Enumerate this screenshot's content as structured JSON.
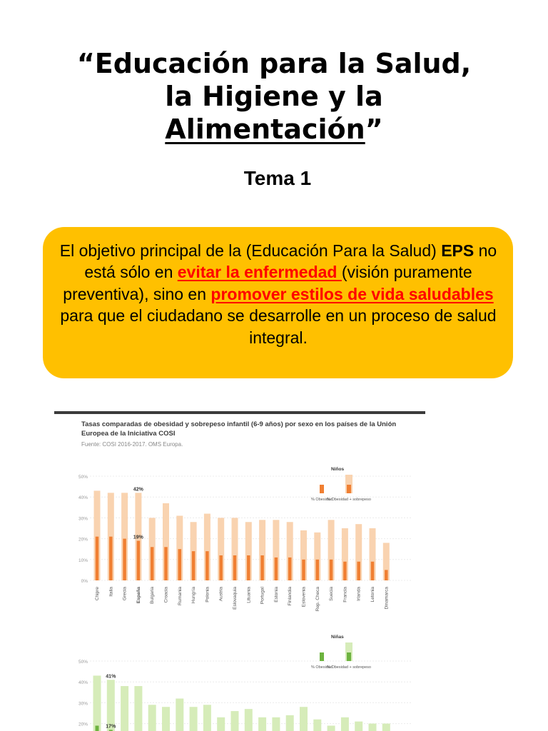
{
  "slide": {
    "title_line1": "“Educación para la Salud,",
    "title_line2": "la Higiene y la",
    "title_line3_u": "Alimentación",
    "title_line3_end": "”",
    "subtitle": "Tema 1"
  },
  "box": {
    "t1": "El objetivo principal de la (Educación Para la Salud) ",
    "t2": "EPS",
    "t3": " no está sólo en ",
    "h1": "evitar la enfermedad ",
    "t4": "(visión puramente preventiva), sino en ",
    "h2": "promover estilos de vida saludables",
    "t5": " para que el ciudadano se desarrolle en un proceso de salud integral.",
    "box_color": "#ffc000",
    "highlight_color": "#ff0000"
  },
  "chart_header": {
    "title": "Tasas comparadas de obesidad y sobrepeso infantil (6-9 años) por sexo en los países de la Unión Europea de la Iniciativa COSI",
    "source": "Fuente: COSI 2016-2017. OMS Europa."
  },
  "chart_data": [
    {
      "type": "bar",
      "legend_title": "Niños",
      "categories": [
        "Chipre",
        "Italia",
        "Grecia",
        "España",
        "Bulgaria",
        "Croacia",
        "Rumania",
        "Hungría",
        "Polonia",
        "Austria",
        "Eslovaquia",
        "Lituania",
        "Portugal",
        "Estonia",
        "Finlandia",
        "Eslovenia",
        "Rep. Checa",
        "Suecia",
        "Francia",
        "Irlanda",
        "Letonia",
        "Dinamarca"
      ],
      "highlight": "España",
      "yticks": [
        "0%",
        "10%",
        "20%",
        "30%",
        "40%",
        "50%"
      ],
      "ylim": [
        0,
        50
      ],
      "series": [
        {
          "name": "% Obesidad + sobrepeso",
          "values": [
            43,
            42,
            42,
            42,
            30,
            37,
            31,
            28,
            32,
            30,
            30,
            28,
            29,
            29,
            28,
            24,
            23,
            29,
            25,
            27,
            25,
            18
          ],
          "color": "#f9d3b0"
        },
        {
          "name": "% Obesidad",
          "values": [
            21,
            21,
            20,
            19,
            16,
            16,
            15,
            14,
            14,
            12,
            12,
            12,
            12,
            11,
            11,
            10,
            10,
            10,
            9,
            9,
            9,
            5
          ],
          "color": "#f07f32"
        }
      ],
      "annotations": [
        "42%",
        "19%"
      ]
    },
    {
      "type": "bar",
      "legend_title": "Niñas",
      "yticks": [
        "10%",
        "20%",
        "30%",
        "40%",
        "50%"
      ],
      "ylim": [
        0,
        50
      ],
      "series": [
        {
          "name": "% Obesidad + sobrepeso",
          "values": [
            43,
            41,
            38,
            38,
            29,
            28,
            32,
            28,
            29,
            23,
            26,
            27,
            23,
            23,
            24,
            28,
            22,
            19,
            23,
            21,
            20,
            20
          ],
          "color": "#d6ecb9"
        },
        {
          "name": "% Obesidad",
          "values": [
            19,
            17,
            14,
            14,
            11,
            12,
            12,
            11,
            10,
            9,
            9,
            8,
            8,
            8,
            8,
            7,
            7,
            6,
            6,
            6,
            6,
            5
          ],
          "color": "#6db33f"
        }
      ],
      "annotations": [
        "41%",
        "17%"
      ]
    }
  ]
}
